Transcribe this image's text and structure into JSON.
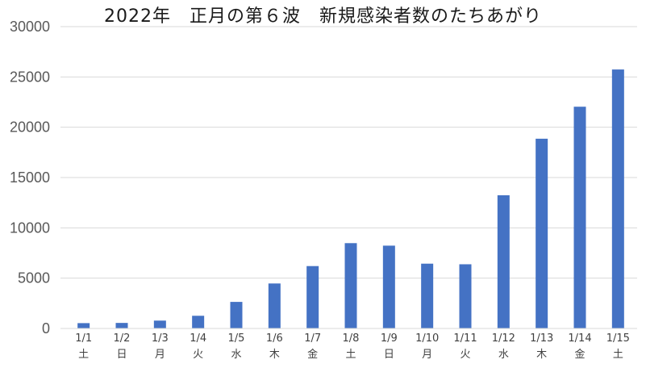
{
  "chart_data": {
    "type": "bar",
    "title": "2022年　正月の第６波　新規感染者数のたちあがり",
    "xlabel": "",
    "ylabel": "",
    "ylim": [
      0,
      30000
    ],
    "yticks": [
      "0",
      "5000",
      "10000",
      "15000",
      "20000",
      "25000",
      "30000"
    ],
    "grid": true,
    "categories": [
      "1/1",
      "1/2",
      "1/3",
      "1/4",
      "1/5",
      "1/6",
      "1/7",
      "1/8",
      "1/9",
      "1/10",
      "1/11",
      "1/12",
      "1/13",
      "1/14",
      "1/15"
    ],
    "weekdays": [
      "土",
      "日",
      "月",
      "火",
      "水",
      "木",
      "金",
      "土",
      "日",
      "月",
      "火",
      "水",
      "木",
      "金",
      "土"
    ],
    "values": [
      530,
      550,
      780,
      1260,
      2640,
      4470,
      6200,
      8480,
      8230,
      6440,
      6380,
      13240,
      18860,
      22040,
      25740
    ],
    "bar_color": "#4472c4"
  }
}
